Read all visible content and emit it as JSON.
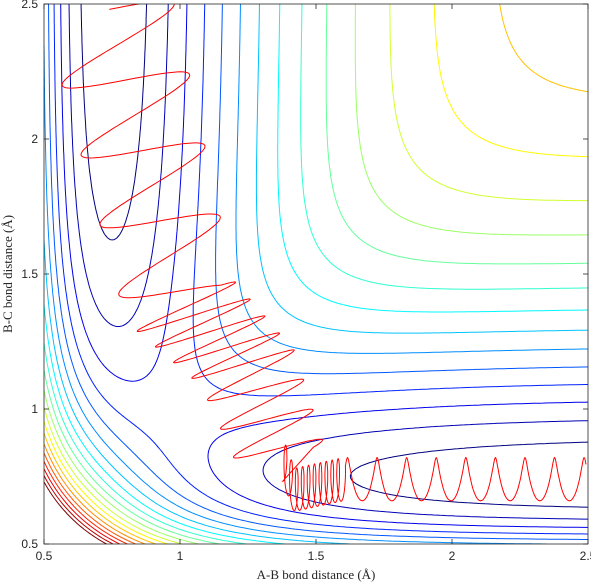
{
  "chart_data": {
    "type": "contour",
    "title": "",
    "xlabel": "A-B bond distance (Å)",
    "ylabel": "B-C bond distance (Å)",
    "xlim": [
      0.5,
      2.5
    ],
    "ylim": [
      0.5,
      2.5
    ],
    "x_ticks": [
      0.5,
      1,
      1.5,
      2,
      2.5
    ],
    "y_ticks": [
      0.5,
      1,
      1.5,
      2,
      2.5
    ],
    "x_tick_labels": [
      "0.5",
      "1",
      "1.5",
      "2",
      "2.5"
    ],
    "y_tick_labels": [
      "0.5",
      "1",
      "1.5",
      "2",
      "2.5"
    ],
    "grid": false,
    "colormap": "jet",
    "contour_levels": 20,
    "surface_minimum": {
      "x": 0.74,
      "y": 2.5
    },
    "trajectory": {
      "color": "#ff0000",
      "description_points": [
        {
          "x": 0.74,
          "y": 2.48
        },
        {
          "x": 1.0,
          "y": 1.4
        },
        {
          "x": 1.25,
          "y": 1.15
        },
        {
          "x": 1.42,
          "y": 0.7
        },
        {
          "x": 1.6,
          "y": 0.74
        },
        {
          "x": 2.5,
          "y": 0.74
        }
      ]
    }
  }
}
